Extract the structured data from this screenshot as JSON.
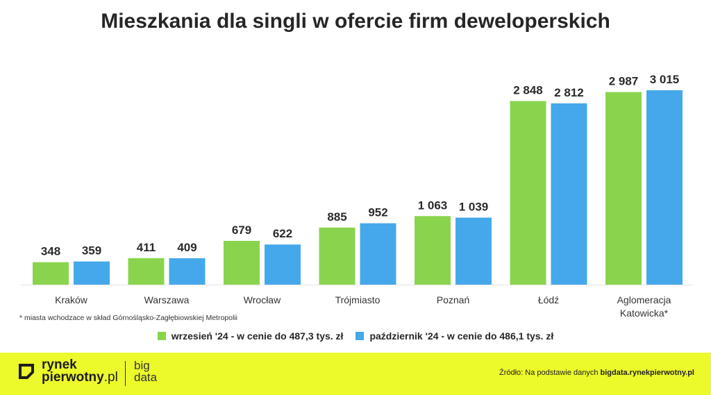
{
  "title": "Mieszkania dla singli w ofercie firm deweloperskich",
  "footnote": "* miasta wchodzace w skład Górnośląsko-Zagłębiowskiej Metropolii",
  "legend": [
    {
      "label": "wrzesień '24 - w cenie do 487,3 tys. zł",
      "color": "#8ad44d"
    },
    {
      "label": "październik '24 - w cenie do 486,1 tys. zł",
      "color": "#45a8ea"
    }
  ],
  "footer": {
    "logo_line1": "rynek",
    "logo_line2_bold": "pierwotny",
    "logo_line2_thin": ".pl",
    "brand_line1": "big",
    "brand_line2": "data",
    "source_prefix": "Źródło: Na podstawie danych",
    "source_site": "bigdata.rynekpierwotny.pl",
    "accent_color": "#ecf92a"
  },
  "chart_data": {
    "type": "bar",
    "title": "Mieszkania dla singli w ofercie firm deweloperskich",
    "categories": [
      "Kraków",
      "Warszawa",
      "Wrocław",
      "Trójmiasto",
      "Poznań",
      "Łódź",
      "Aglomeracja Katowicka*"
    ],
    "category_lines": [
      [
        "Kraków"
      ],
      [
        "Warszawa"
      ],
      [
        "Wrocław"
      ],
      [
        "Trójmiasto"
      ],
      [
        "Poznań"
      ],
      [
        "Łódź"
      ],
      [
        "Aglomeracja",
        "Katowicka*"
      ]
    ],
    "series": [
      {
        "name": "wrzesień '24 - w cenie do 487,3 tys. zł",
        "color": "#8ad44d",
        "values": [
          348,
          411,
          679,
          885,
          1063,
          2848,
          2987
        ],
        "labels": [
          "348",
          "411",
          "679",
          "885",
          "1 063",
          "2 848",
          "2 987"
        ]
      },
      {
        "name": "październik '24 - w cenie do 486,1 tys. zł",
        "color": "#45a8ea",
        "values": [
          359,
          409,
          622,
          952,
          1039,
          2812,
          3015
        ],
        "labels": [
          "359",
          "409",
          "622",
          "952",
          "1 039",
          "2 812",
          "3 015"
        ]
      }
    ],
    "ylim": [
      0,
      3015
    ],
    "grid": false,
    "legend_position": "bottom"
  }
}
